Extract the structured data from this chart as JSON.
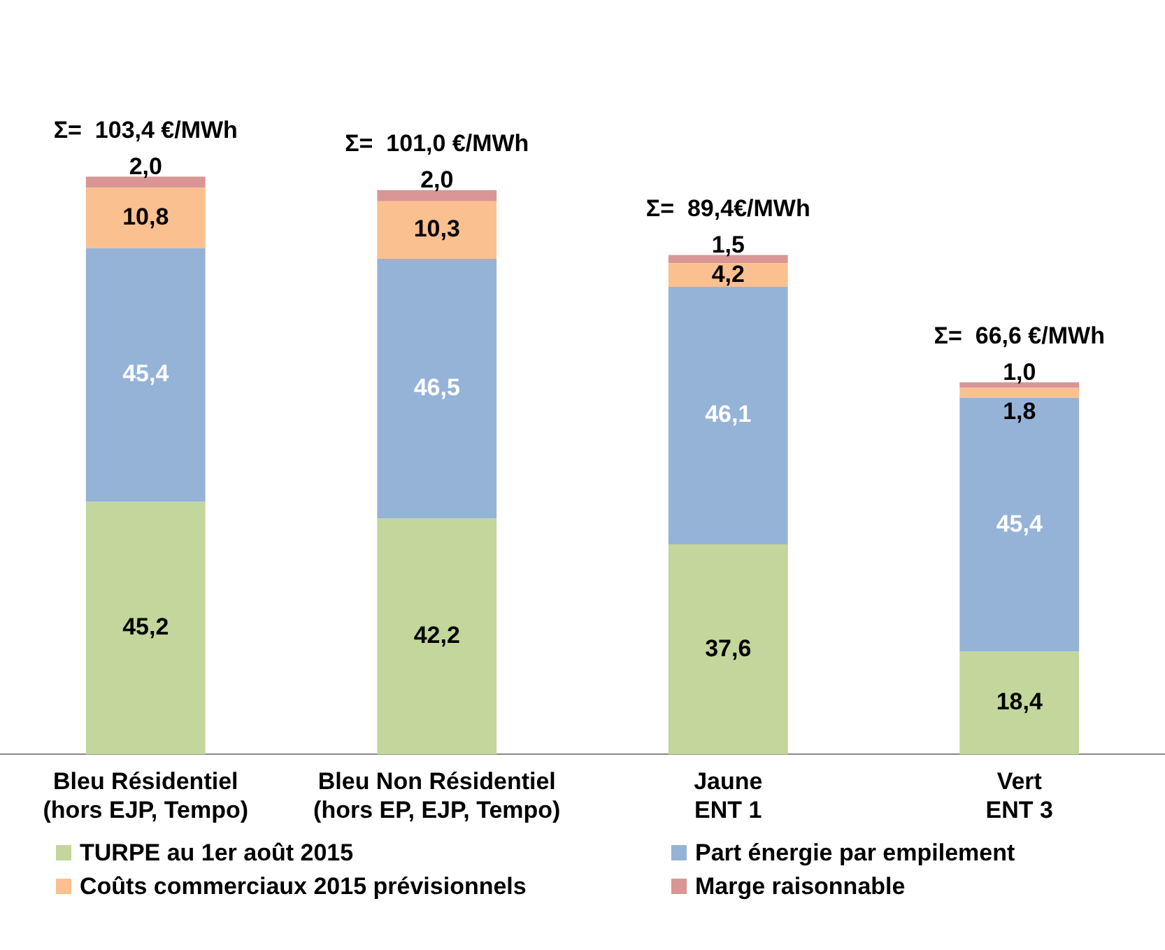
{
  "chart_data": {
    "type": "bar",
    "stacked": true,
    "categories": [
      "Bleu Résidentiel\n(hors EJP, Tempo)",
      "Bleu Non Résidentiel\n(hors EP, EJP, Tempo)",
      "Jaune\nENT 1",
      "Vert\nENT 3"
    ],
    "series": [
      {
        "name": "TURPE au 1er août 2015",
        "color": "#c3d69b",
        "values": [
          45.2,
          42.2,
          37.6,
          18.4
        ],
        "value_labels": [
          "45,2",
          "42,2",
          "37,6",
          "18,4"
        ]
      },
      {
        "name": "Part énergie par empilement",
        "color": "#95b3d7",
        "values": [
          45.4,
          46.5,
          46.1,
          45.4
        ],
        "value_labels": [
          "45,4",
          "46,5",
          "46,1",
          "45,4"
        ]
      },
      {
        "name": "Coûts commerciaux 2015 prévisionnels",
        "color": "#fac090",
        "values": [
          10.8,
          10.3,
          4.2,
          1.8
        ],
        "value_labels": [
          "10,8",
          "10,3",
          "4,2",
          "1,8"
        ]
      },
      {
        "name": "Marge raisonnable",
        "color": "#d99694",
        "values": [
          2.0,
          2.0,
          1.5,
          1.0
        ],
        "value_labels": [
          "2,0",
          "2,0",
          "1,5",
          "1,0"
        ]
      }
    ],
    "totals": [
      "Σ=  103,4 €/MWh",
      "Σ=  101,0 €/MWh",
      "Σ=  89,4€/MWh",
      "Σ=  66,6 €/MWh"
    ],
    "legend": "bottom",
    "grid": false,
    "tick_labels": "x"
  }
}
